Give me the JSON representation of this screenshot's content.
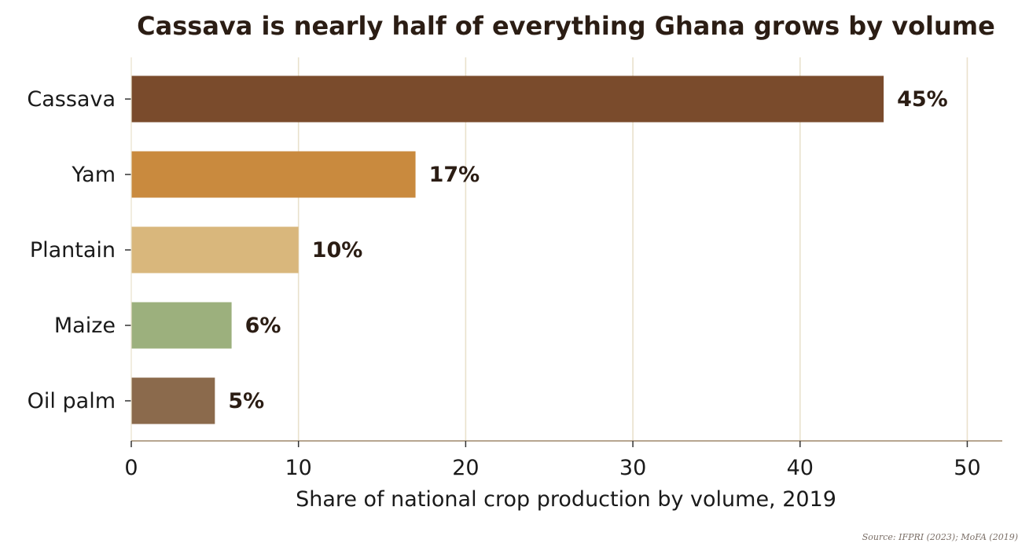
{
  "chart_data": {
    "type": "bar",
    "orientation": "horizontal",
    "title": "Cassava is nearly half of everything Ghana grows by volume",
    "xlabel": "Share of national crop production by volume, 2019",
    "ylabel": "",
    "categories": [
      "Cassava",
      "Yam",
      "Plantain",
      "Maize",
      "Oil palm"
    ],
    "values": [
      45,
      17,
      10,
      6,
      5
    ],
    "value_labels": [
      "45%",
      "17%",
      "10%",
      "6%",
      "5%"
    ],
    "colors": [
      "#7a4b2c",
      "#c98a3e",
      "#d9b77c",
      "#9cb07d",
      "#8b6a4c"
    ],
    "xlim": [
      0,
      52
    ],
    "xticks": [
      0,
      10,
      20,
      30,
      40,
      50
    ],
    "xtick_labels": [
      "0",
      "10",
      "20",
      "30",
      "40",
      "50"
    ],
    "grid": "vertical",
    "grid_color": "#e9e1cc",
    "axis_color": "#b7a690",
    "text_color": "#2b1d14",
    "source": "Source: IFPRI (2023); MoFA (2019)"
  }
}
